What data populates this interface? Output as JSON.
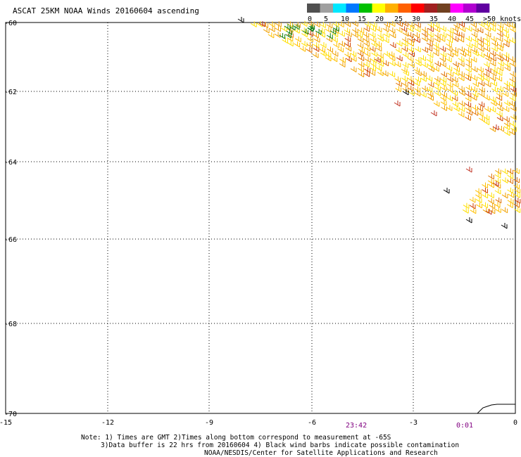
{
  "title": "ASCAT 25KM NOAA Winds 20160604 ascending",
  "legend": {
    "labels": [
      "0",
      "5",
      "10",
      "15",
      "20",
      "25",
      "30",
      "35",
      "40",
      "45",
      ">50 knots"
    ],
    "colors": [
      "#505050",
      "#a0a0a0",
      "#00e8ff",
      "#0078ff",
      "#00c000",
      "#ffff00",
      "#ffb000",
      "#ff6000",
      "#ff0000",
      "#a02020",
      "#704020",
      "#ff00ff",
      "#b000d0",
      "#6000a0"
    ]
  },
  "axes": {
    "x_ticks": [
      "-15",
      "-12",
      "-9",
      "-6",
      "-3",
      "0"
    ],
    "y_ticks": [
      "-60",
      "-62",
      "-64",
      "-66",
      "-68",
      "-70"
    ]
  },
  "times": [
    {
      "label": "23:42",
      "color": "#800080"
    },
    {
      "label": "0:01",
      "color": "#800080"
    }
  ],
  "notes": [
    "Note: 1) Times are GMT 2)Times along bottom correspond to measurement at -65S",
    "3)Data buffer is 22 hrs from 20160604 4) Black wind barbs indicate possible contamination",
    "NOAA/NESDIS/Center for Satellite Applications and Research"
  ]
}
